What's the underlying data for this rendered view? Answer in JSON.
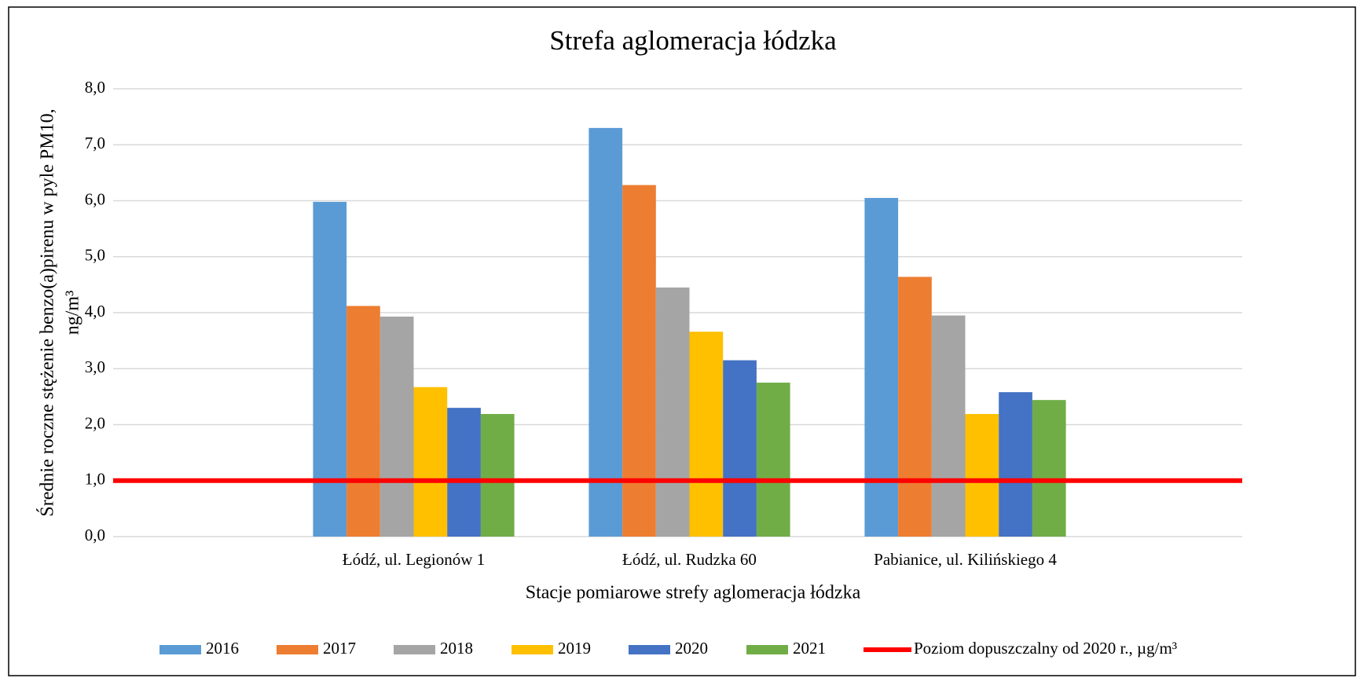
{
  "chart_data": {
    "type": "bar",
    "title": "Strefa aglomeracja łódzka",
    "x_label": "Stacje pomiarowe strefy aglomeracja łódzka",
    "y_label": [
      "Średnie roczne stężenie benzo(a)pirenu w pyle PM10,",
      "ng/m³"
    ],
    "categories": [
      "Łódź, ul. Legionów 1",
      "Łódź, ul. Rudzka 60",
      "Pabianice, ul. Kilińskiego 4"
    ],
    "series": [
      {
        "name": "2016",
        "color": "#5b9bd5",
        "values": [
          5.98,
          7.3,
          6.05
        ]
      },
      {
        "name": "2017",
        "color": "#ed7d31",
        "values": [
          4.12,
          6.28,
          4.64
        ]
      },
      {
        "name": "2018",
        "color": "#a5a5a5",
        "values": [
          3.93,
          4.45,
          3.95
        ]
      },
      {
        "name": "2019",
        "color": "#ffc000",
        "values": [
          2.67,
          3.66,
          2.19
        ]
      },
      {
        "name": "2020",
        "color": "#4472c4",
        "values": [
          2.3,
          3.15,
          2.58
        ]
      },
      {
        "name": "2021",
        "color": "#70ad47",
        "values": [
          2.19,
          2.75,
          2.44
        ]
      }
    ],
    "limit": {
      "name": "Poziom dopuszczalny od 2020 r., µg/m³",
      "value": 1.0,
      "color": "#ff0000"
    },
    "ylim": [
      0,
      8
    ],
    "yticks": [
      {
        "value": 0,
        "label": "0,0"
      },
      {
        "value": 1,
        "label": "1,0"
      },
      {
        "value": 2,
        "label": "2,0"
      },
      {
        "value": 3,
        "label": "3,0"
      },
      {
        "value": 4,
        "label": "4,0"
      },
      {
        "value": 5,
        "label": "5,0"
      },
      {
        "value": 6,
        "label": "6,0"
      },
      {
        "value": 7,
        "label": "7,0"
      },
      {
        "value": 8,
        "label": "8,0"
      }
    ],
    "grid": true,
    "legend": "bottom"
  }
}
